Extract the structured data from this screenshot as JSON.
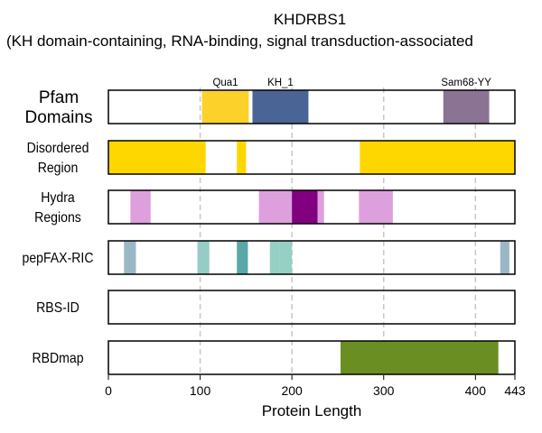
{
  "chart_data": {
    "type": "bar",
    "title": "KHDRBS1",
    "subtitle": "(KH domain-containing, RNA-binding, signal transduction-associated",
    "xlabel": "Protein Length",
    "xlim": [
      0,
      443
    ],
    "x_ticks": [
      0,
      100,
      200,
      300,
      400,
      443
    ],
    "grid_x": [
      100,
      200,
      300,
      400
    ],
    "tracks": [
      {
        "label_lines": [
          "Pfam",
          "Domains"
        ],
        "segments": [
          {
            "start": 102,
            "end": 153,
            "color": "#fcd12a",
            "label": "Qua1"
          },
          {
            "start": 157,
            "end": 218,
            "color": "#4a6496",
            "label": "KH_1"
          },
          {
            "start": 365,
            "end": 415,
            "color": "#8a7393",
            "label": "Sam68-YY"
          }
        ]
      },
      {
        "label_lines": [
          "Disordered",
          "Region"
        ],
        "segments": [
          {
            "start": 0,
            "end": 106,
            "color": "#ffd700"
          },
          {
            "start": 140,
            "end": 150,
            "color": "#ffd700"
          },
          {
            "start": 274,
            "end": 443,
            "color": "#ffd700"
          }
        ]
      },
      {
        "label_lines": [
          "Hydra",
          "Regions"
        ],
        "segments": [
          {
            "start": 24,
            "end": 46,
            "color": "#dda0dd"
          },
          {
            "start": 164,
            "end": 200,
            "color": "#dda0dd"
          },
          {
            "start": 200,
            "end": 228,
            "color": "#800080"
          },
          {
            "start": 228,
            "end": 235,
            "color": "#dda0dd"
          },
          {
            "start": 273,
            "end": 310,
            "color": "#dda0dd"
          }
        ]
      },
      {
        "label_lines": [
          "pepFAX-RIC"
        ],
        "segments": [
          {
            "start": 17,
            "end": 30,
            "color": "#9ab7c6"
          },
          {
            "start": 97,
            "end": 110,
            "color": "#96ccc6"
          },
          {
            "start": 140,
            "end": 152,
            "color": "#5aa7a7"
          },
          {
            "start": 176,
            "end": 187,
            "color": "#96d0c4"
          },
          {
            "start": 187,
            "end": 200,
            "color": "#96d0c4"
          },
          {
            "start": 427,
            "end": 437,
            "color": "#9ab7c6"
          }
        ]
      },
      {
        "label_lines": [
          "RBS-ID"
        ],
        "segments": []
      },
      {
        "label_lines": [
          "RBDmap"
        ],
        "segments": [
          {
            "start": 253,
            "end": 425,
            "color": "#6b8e23"
          }
        ]
      }
    ]
  }
}
